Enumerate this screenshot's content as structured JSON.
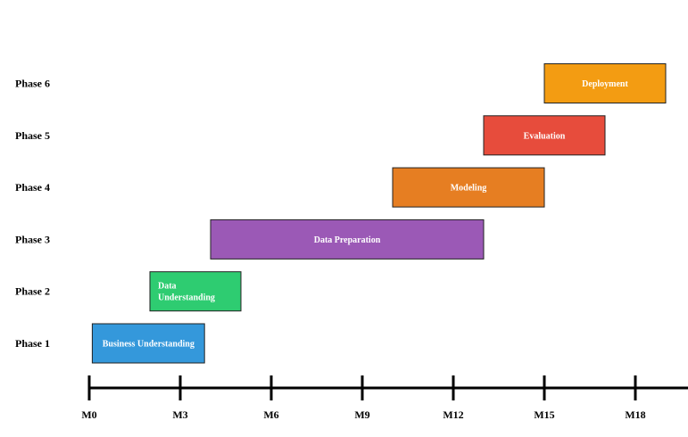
{
  "chart_data": {
    "type": "bar",
    "orientation": "horizontal-gantt",
    "title": "",
    "xlabel": "",
    "ylabel": "",
    "xlim": [
      0,
      19.5
    ],
    "x_ticks": [
      0,
      3,
      6,
      9,
      12,
      15,
      18
    ],
    "x_tick_labels": [
      "M0",
      "M3",
      "M6",
      "M9",
      "M12",
      "M15",
      "M18"
    ],
    "grid": false,
    "legend": "none",
    "categories": [
      "Phase 1",
      "Phase 2",
      "Phase 3",
      "Phase 4",
      "Phase 5",
      "Phase 6"
    ],
    "tasks": [
      {
        "phase": "Phase 1",
        "label": [
          "Business Understanding"
        ],
        "start": 0.1,
        "end": 3.8,
        "color": "#3498db",
        "label_align": "center"
      },
      {
        "phase": "Phase 2",
        "label": [
          "Data",
          "Understanding"
        ],
        "start": 2.0,
        "end": 5.0,
        "color": "#2ecc71",
        "label_align": "left"
      },
      {
        "phase": "Phase 3",
        "label": [
          "Data Preparation"
        ],
        "start": 4.0,
        "end": 13.0,
        "color": "#9b59b6",
        "label_align": "center"
      },
      {
        "phase": "Phase 4",
        "label": [
          "Modeling"
        ],
        "start": 10.0,
        "end": 15.0,
        "color": "#e67e22",
        "label_align": "center"
      },
      {
        "phase": "Phase 5",
        "label": [
          "Evaluation"
        ],
        "start": 13.0,
        "end": 17.0,
        "color": "#e74c3c",
        "label_align": "center"
      },
      {
        "phase": "Phase 6",
        "label": [
          "Deployment"
        ],
        "start": 15.0,
        "end": 19.0,
        "color": "#f39c12",
        "label_align": "center"
      }
    ]
  }
}
